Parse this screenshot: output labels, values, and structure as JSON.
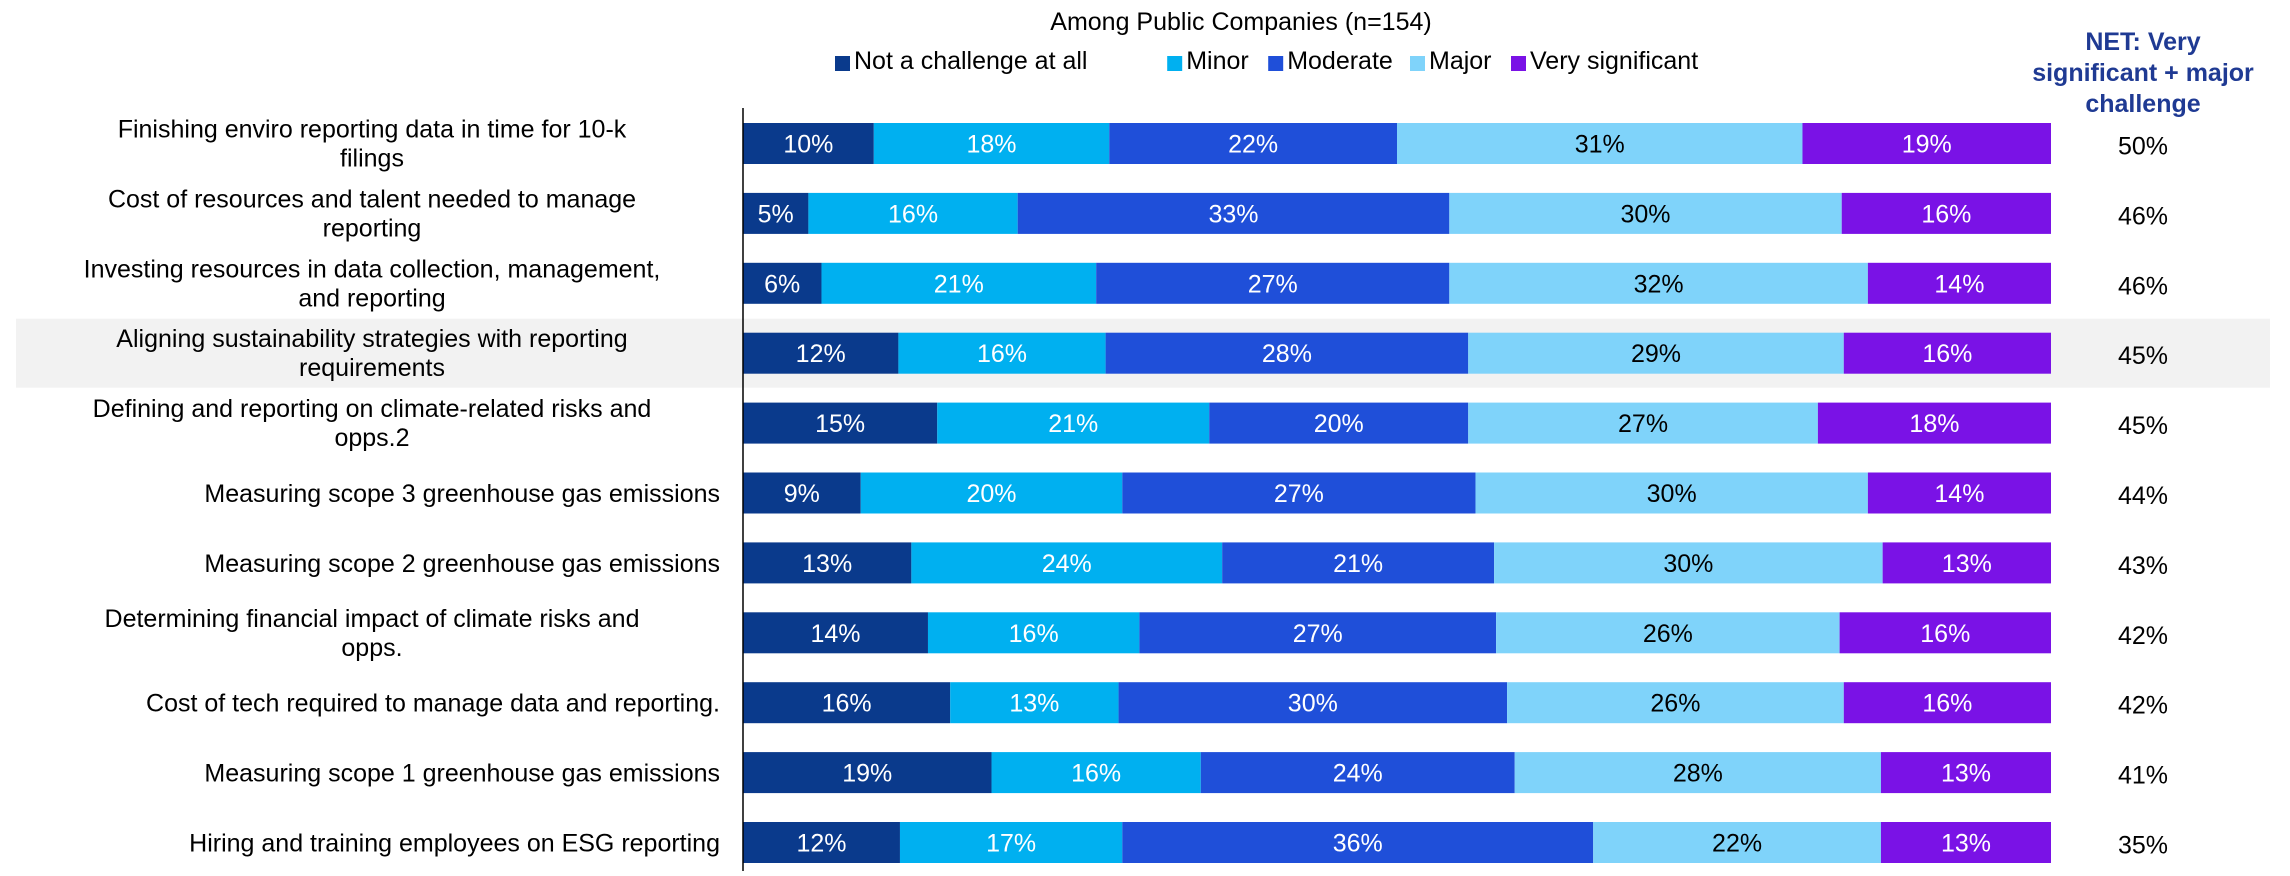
{
  "chart_data": {
    "type": "bar",
    "orientation": "horizontal",
    "stacked": true,
    "title": "Among Public Companies (n=154)",
    "xlabel": "",
    "ylabel": "",
    "xlim": [
      0,
      100
    ],
    "legend_position": "top",
    "categories": [
      "Finishing enviro reporting data in time for 10-k filings",
      "Cost of resources and talent needed to manage reporting",
      "Investing resources in data collection, management, and reporting",
      "Aligning sustainability strategies with reporting requirements",
      "Defining and reporting on climate-related risks and opps.2",
      "Measuring scope 3 greenhouse gas emissions",
      "Measuring scope 2 greenhouse gas emissions",
      "Determining financial impact of climate risks and opps.",
      "Cost of tech required to manage data and reporting.",
      "Measuring scope 1 greenhouse gas emissions",
      "Hiring and training employees on ESG reporting"
    ],
    "series": [
      {
        "name": "Not a challenge at all",
        "color": "#0a3a8c",
        "label_color": "#ffffff",
        "values": [
          10,
          5,
          6,
          12,
          15,
          9,
          13,
          14,
          16,
          19,
          12
        ]
      },
      {
        "name": "Minor",
        "color": "#00b0f0",
        "label_color": "#ffffff",
        "values": [
          18,
          16,
          21,
          16,
          21,
          20,
          24,
          16,
          13,
          16,
          17
        ]
      },
      {
        "name": "Moderate",
        "color": "#1f4fd9",
        "label_color": "#ffffff",
        "values": [
          22,
          33,
          27,
          28,
          20,
          27,
          21,
          27,
          30,
          24,
          36
        ]
      },
      {
        "name": "Major",
        "color": "#7fd3fa",
        "label_color": "#000000",
        "values": [
          31,
          30,
          32,
          29,
          27,
          30,
          30,
          26,
          26,
          28,
          22
        ]
      },
      {
        "name": "Very significant",
        "color": "#7a12e6",
        "label_color": "#ffffff",
        "values": [
          19,
          16,
          14,
          16,
          18,
          14,
          13,
          16,
          16,
          13,
          13
        ]
      }
    ],
    "net": {
      "title": "NET: Very significant + major challenge",
      "title_color": "#1f3a93",
      "values": [
        50,
        46,
        46,
        45,
        45,
        44,
        43,
        42,
        42,
        41,
        35
      ]
    },
    "highlight_row": 3,
    "highlight_color": "#f2f2f2",
    "value_suffix": "%"
  }
}
